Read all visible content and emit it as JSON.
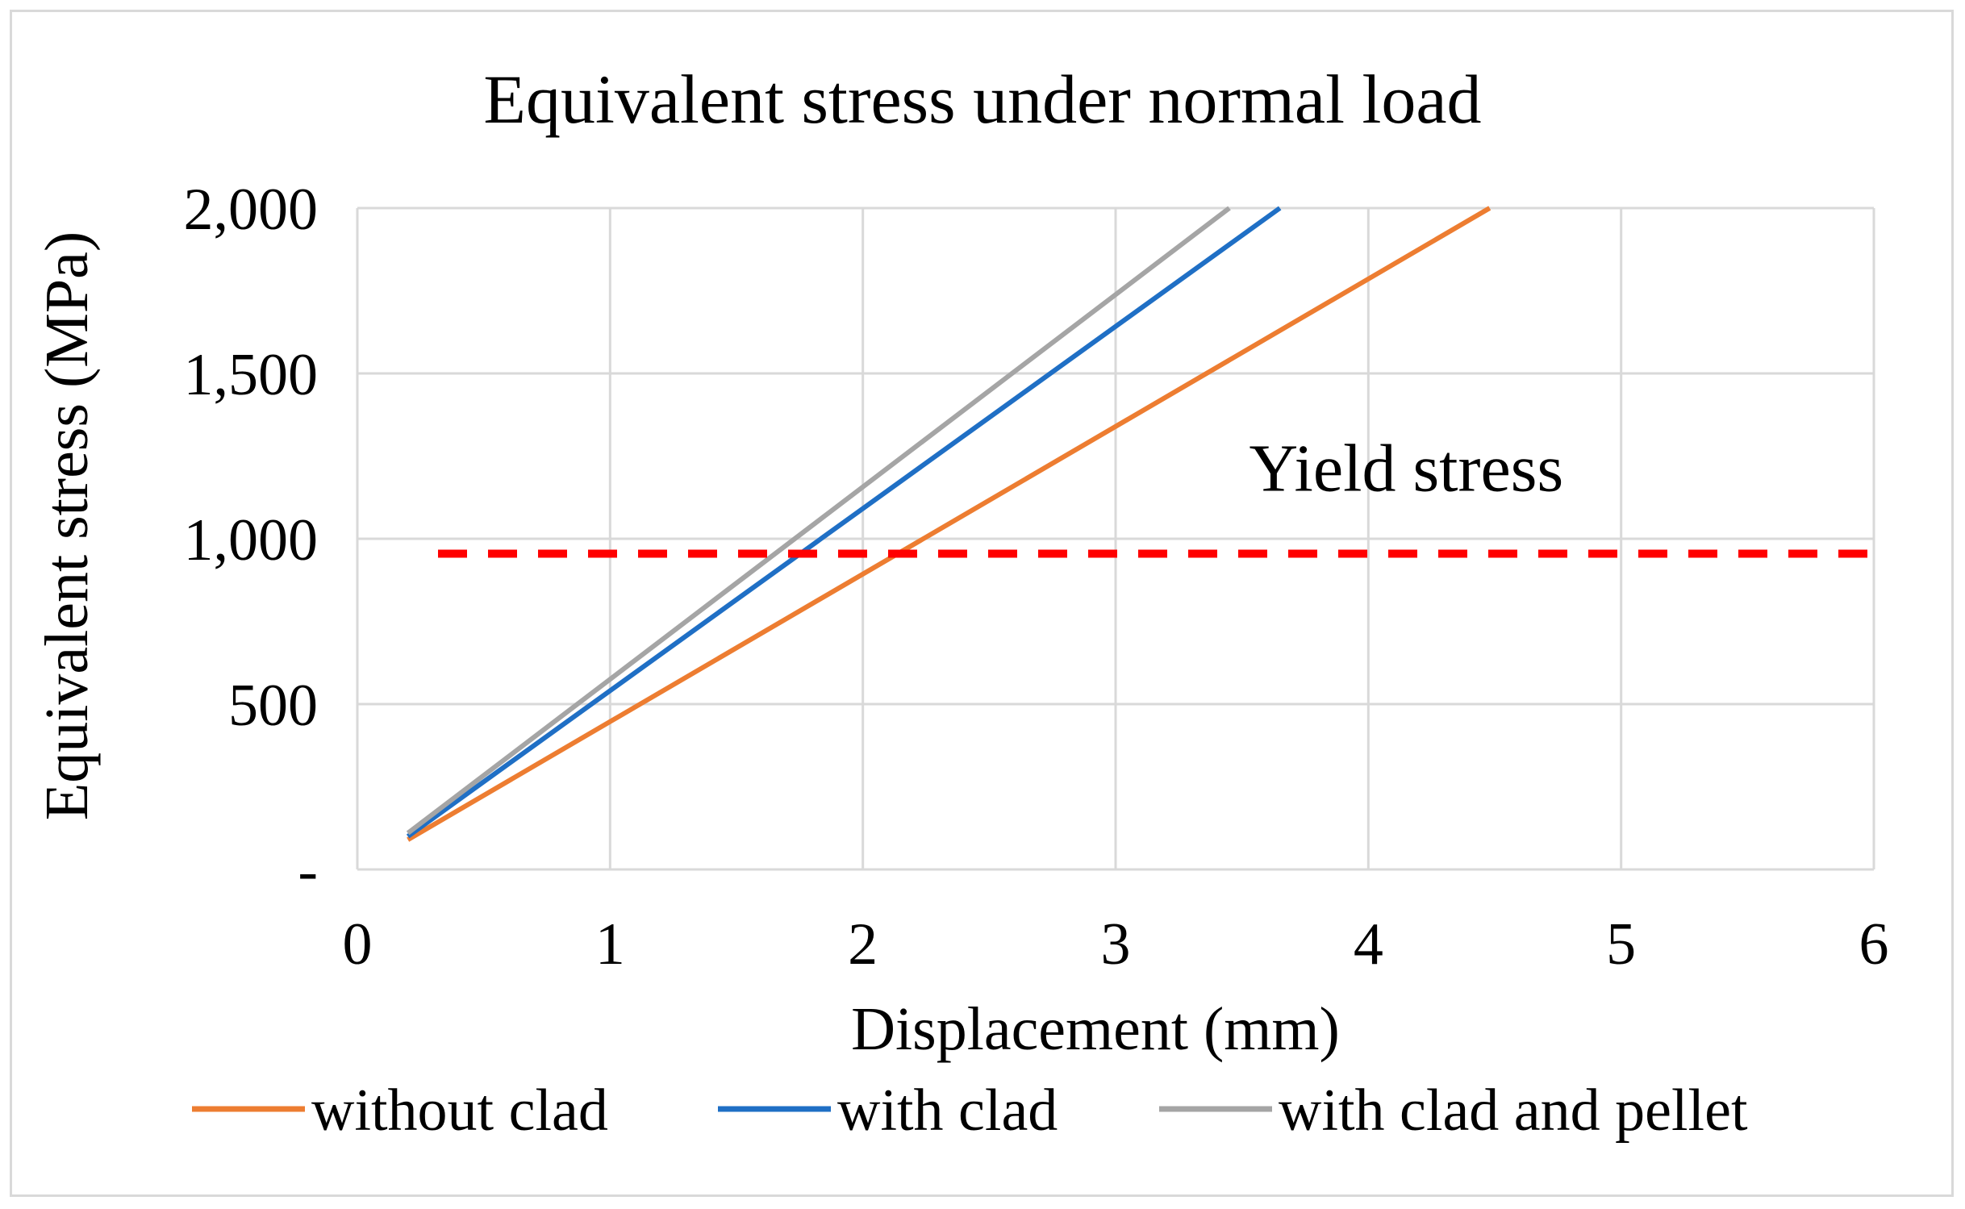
{
  "chart_data": {
    "type": "line",
    "title": "Equivalent stress under normal load",
    "xlabel": "Displacement (mm)",
    "ylabel": "Equivalent stress (MPa)",
    "xlim": [
      0,
      6
    ],
    "ylim": [
      0,
      2000
    ],
    "x_ticks": [
      0,
      1,
      2,
      3,
      4,
      5,
      6
    ],
    "x_tick_labels": [
      "0",
      "1",
      "2",
      "3",
      "4",
      "5",
      "6"
    ],
    "y_ticks": [
      0,
      500,
      1000,
      1500,
      2000
    ],
    "y_tick_labels": [
      "-",
      "500",
      "1,000",
      "1,500",
      "2,000"
    ],
    "grid": true,
    "legend_position": "bottom",
    "series": [
      {
        "name": "without clad",
        "color": "#ED7D31",
        "x": [
          0.2,
          4.48
        ],
        "y": [
          90,
          2000
        ]
      },
      {
        "name": "with clad",
        "color": "#1F6FC5",
        "x": [
          0.2,
          3.65
        ],
        "y": [
          100,
          2000
        ]
      },
      {
        "name": "with clad and pellet",
        "color": "#A5A5A5",
        "x": [
          0.2,
          3.45
        ],
        "y": [
          110,
          2000
        ]
      }
    ],
    "reference_line": {
      "label": "Yield stress",
      "value": 955,
      "color": "#FF0000",
      "style": "dashed"
    }
  }
}
